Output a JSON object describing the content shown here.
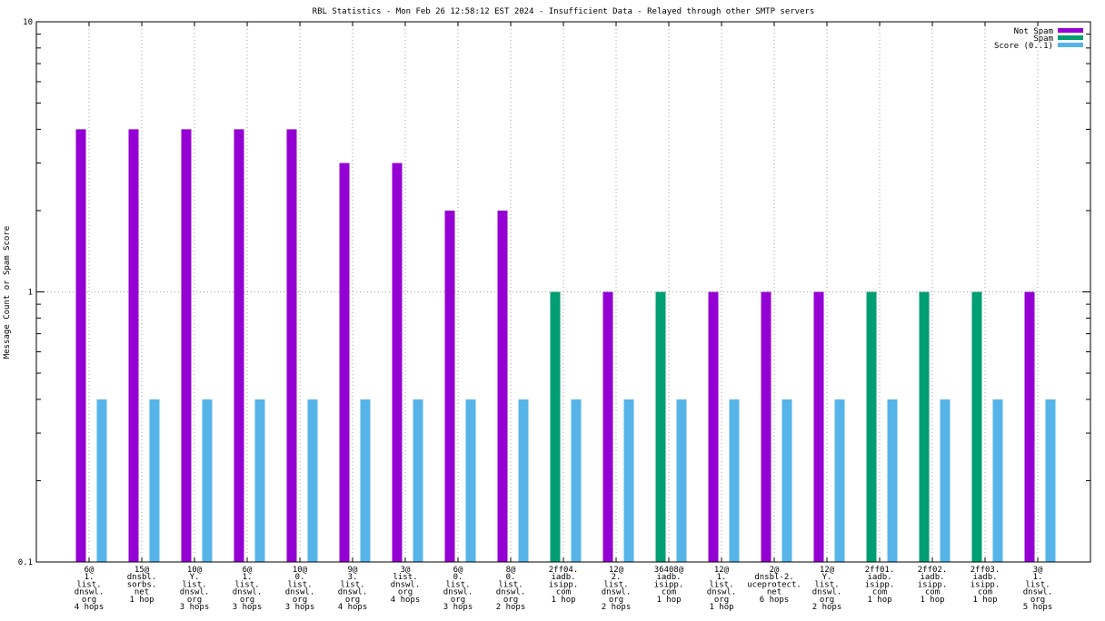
{
  "chart_data": {
    "type": "bar",
    "title": "RBL Statistics - Mon Feb 26 12:58:12 EST 2024 - Insufficient Data - Relayed through other SMTP servers",
    "ylabel": "Message Count or Spam Score",
    "xlabel": "",
    "yscale": "log",
    "ylim": [
      0.1,
      10
    ],
    "yticks": [
      "0.1",
      "1",
      "10"
    ],
    "grid": true,
    "legend_position": "top-right",
    "categories": [
      [
        "6@",
        "1.",
        "list.",
        "dnswl.",
        "org",
        "4 hops"
      ],
      [
        "15@",
        "dnsbl.",
        "sorbs.",
        "net",
        "1 hop"
      ],
      [
        "10@",
        "Y.",
        "list.",
        "dnswl.",
        "org",
        "3 hops"
      ],
      [
        "6@",
        "1.",
        "list.",
        "dnswl.",
        "org",
        "3 hops"
      ],
      [
        "10@",
        "0.",
        "list.",
        "dnswl.",
        "org",
        "3 hops"
      ],
      [
        "9@",
        "3.",
        "list.",
        "dnswl.",
        "org",
        "4 hops"
      ],
      [
        "3@",
        "list.",
        "dnswl.",
        "org",
        "4 hops"
      ],
      [
        "6@",
        "0.",
        "list.",
        "dnswl.",
        "org",
        "3 hops"
      ],
      [
        "8@",
        "0.",
        "list.",
        "dnswl.",
        "org",
        "2 hops"
      ],
      [
        "2ff04.",
        "iadb.",
        "isipp.",
        "com",
        "1 hop"
      ],
      [
        "12@",
        "2.",
        "list.",
        "dnswl.",
        "org",
        "2 hops"
      ],
      [
        "36408@",
        "iadb.",
        "isipp.",
        "com",
        "1 hop"
      ],
      [
        "12@",
        "1.",
        "list.",
        "dnswl.",
        "org",
        "1 hop"
      ],
      [
        "2@",
        "dnsbl-2.",
        "uceprotect.",
        "net",
        "6 hops"
      ],
      [
        "12@",
        "Y.",
        "list.",
        "dnswl.",
        "org",
        "2 hops"
      ],
      [
        "2ff01.",
        "iadb.",
        "isipp.",
        "com",
        "1 hop"
      ],
      [
        "2ff02.",
        "iadb.",
        "isipp.",
        "com",
        "1 hop"
      ],
      [
        "2ff03.",
        "iadb.",
        "isipp.",
        "com",
        "1 hop"
      ],
      [
        "3@",
        "1.",
        "list.",
        "dnswl.",
        "org",
        "5 hops"
      ]
    ],
    "series": [
      {
        "name": "Not Spam",
        "color": "#9400d3",
        "values": [
          4,
          4,
          4,
          4,
          4,
          3,
          3,
          2,
          2,
          0,
          1,
          0,
          1,
          1,
          1,
          0,
          0,
          0,
          1
        ]
      },
      {
        "name": "Spam",
        "color": "#009e73",
        "values": [
          0,
          0,
          0,
          0,
          0,
          0,
          0,
          0,
          0,
          1,
          0,
          1,
          0,
          0,
          0,
          1,
          1,
          1,
          0
        ]
      },
      {
        "name": "Score (0..1)",
        "color": "#56b4e9",
        "values": [
          0.4,
          0.4,
          0.4,
          0.4,
          0.4,
          0.4,
          0.4,
          0.4,
          0.4,
          0.4,
          0.4,
          0.4,
          0.4,
          0.4,
          0.4,
          0.4,
          0.4,
          0.4,
          0.4
        ]
      }
    ]
  }
}
